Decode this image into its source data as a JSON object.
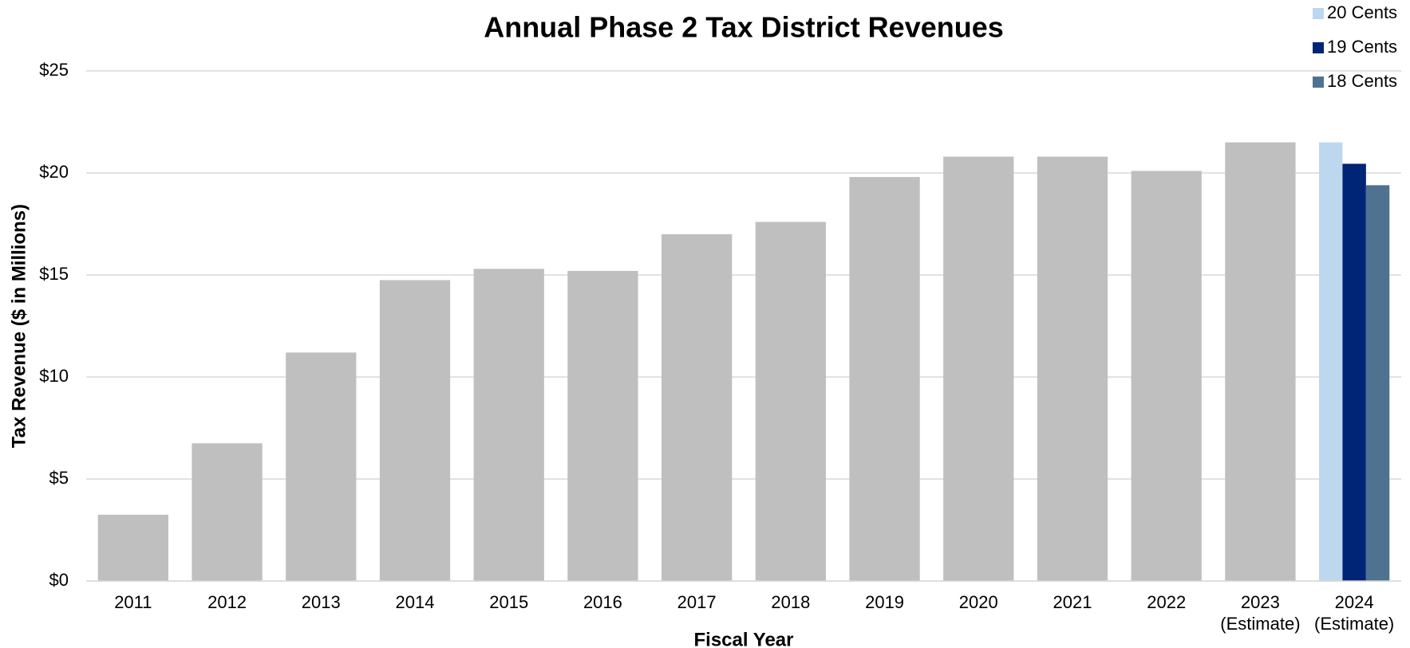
{
  "chart_data": {
    "type": "bar",
    "title": "Annual Phase 2 Tax District Revenues",
    "x_label": "Fiscal Year",
    "y_label": "Tax Revenue ($ in Millions)",
    "categories": [
      "2011",
      "2012",
      "2013",
      "2014",
      "2015",
      "2016",
      "2017",
      "2018",
      "2019",
      "2020",
      "2021",
      "2022",
      "2023 (Estimate)",
      "2024 (Estimate)"
    ],
    "series": [
      {
        "color": "#bfbfbf",
        "values": [
          3.25,
          6.75,
          11.2,
          14.75,
          15.3,
          15.2,
          17.0,
          17.6,
          19.8,
          20.8,
          20.8,
          20.1,
          21.5,
          null
        ]
      },
      {
        "name": "20 Cents",
        "color": "#bdd7ee",
        "values": [
          null,
          null,
          null,
          null,
          null,
          null,
          null,
          null,
          null,
          null,
          null,
          null,
          null,
          21.5
        ]
      },
      {
        "name": "19 Cents",
        "color": "#002577",
        "values": [
          null,
          null,
          null,
          null,
          null,
          null,
          null,
          null,
          null,
          null,
          null,
          null,
          null,
          20.45
        ]
      },
      {
        "name": "18 Cents",
        "color": "#4f7291",
        "values": [
          null,
          null,
          null,
          null,
          null,
          null,
          null,
          null,
          null,
          null,
          null,
          null,
          null,
          19.4
        ]
      }
    ],
    "ylim": [
      0,
      25
    ],
    "yticks": [
      {
        "value": 0,
        "label": "$0"
      },
      {
        "value": 5,
        "label": "$5"
      },
      {
        "value": 10,
        "label": "$10"
      },
      {
        "value": 15,
        "label": "$15"
      },
      {
        "value": 20,
        "label": "$20"
      },
      {
        "value": 25,
        "label": "$25"
      }
    ],
    "grid": true,
    "legend": "top-right"
  }
}
